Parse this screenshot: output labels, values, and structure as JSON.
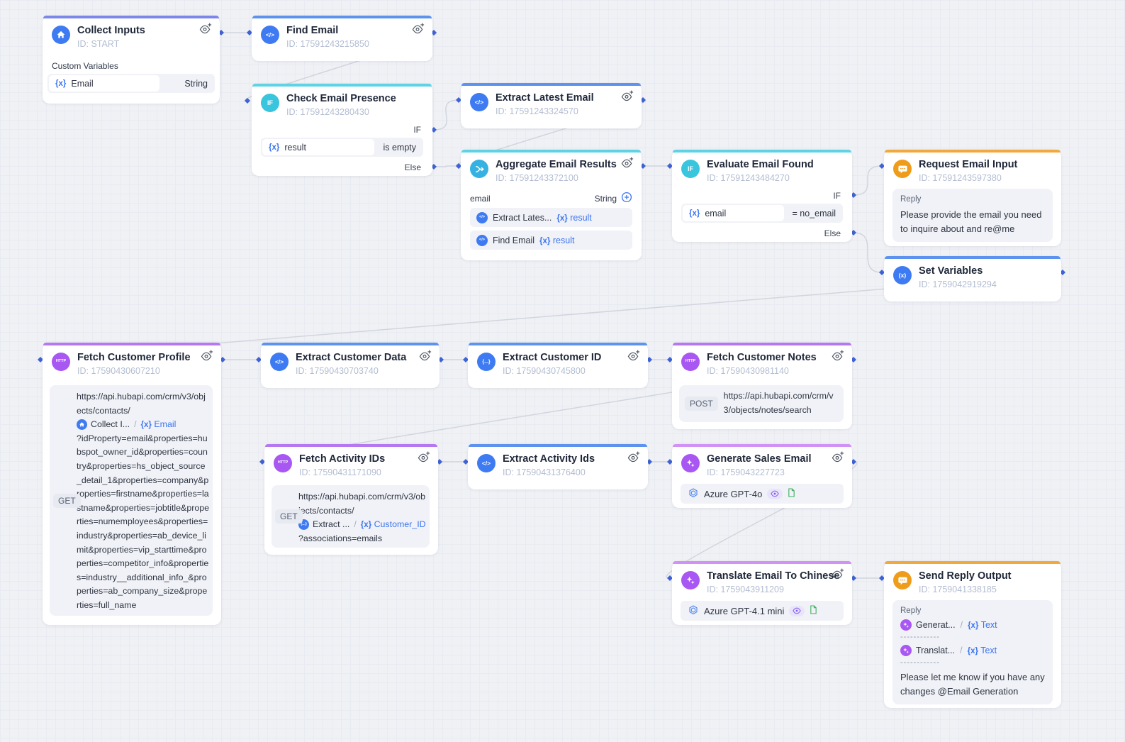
{
  "palette": {
    "canvas_bg": "#eff1f5",
    "node_bg": "#ffffff",
    "accent_start": "#7d87ea",
    "accent_code": "#5d93ee",
    "accent_logic": "#5ed3e6",
    "accent_http": "#b678f0",
    "accent_ai": "#d292f5",
    "accent_reply": "#f2a93c",
    "port": "#3f63d6",
    "wire": "#d2d5de",
    "reference_blue": "#3b74f0"
  },
  "tokens": {
    "vx": "{x}",
    "sep": "/",
    "dashes": "------------",
    "if_badge": "IF",
    "code_badge": "</>",
    "http_badge": "HTTP",
    "setvar_badge": "(x)",
    "obj_badge": "{...}"
  },
  "nodes": {
    "collect_inputs": {
      "title": "Collect Inputs",
      "id": "ID: START",
      "section": "Custom Variables",
      "var_name": "Email",
      "var_type": "String"
    },
    "find_email": {
      "title": "Find Email",
      "id": "ID: 17591243215850"
    },
    "check_email_presence": {
      "title": "Check Email Presence",
      "id": "ID: 17591243280430",
      "if_label": "IF",
      "else_label": "Else",
      "cond_var": "result",
      "cond_op": "is empty"
    },
    "extract_latest_email": {
      "title": "Extract Latest Email",
      "id": "ID: 17591243324570"
    },
    "aggregate_email_results": {
      "title": "Aggregate Email Results",
      "id": "ID: 17591243372100",
      "field_name": "email",
      "field_type": "String",
      "rows": [
        {
          "name": "Extract Lates...",
          "var": "result"
        },
        {
          "name": "Find Email",
          "var": "result"
        }
      ]
    },
    "evaluate_email_found": {
      "title": "Evaluate Email Found",
      "id": "ID: 17591243484270",
      "if_label": "IF",
      "else_label": "Else",
      "cond_var": "email",
      "cond_op": "= no_email"
    },
    "request_email_input": {
      "title": "Request Email Input",
      "id": "ID: 17591243597380",
      "reply_label": "Reply",
      "reply_text": "Please provide the email you need to inquire about and re@me"
    },
    "set_variables": {
      "title": "Set Variables",
      "id": "ID: 1759042919294"
    },
    "fetch_customer_profile": {
      "title": "Fetch Customer Profile",
      "id": "ID: 17590430607210",
      "method": "GET",
      "url_1": "https://api.hubapi.com/crm/v3/objects/contacts/",
      "ref_name": "Collect I...",
      "ref_var": "Email",
      "url_2": "?idProperty=email&properties=hubspot_owner_id&properties=country&properties=hs_object_source_detail_1&properties=company&properties=firstname&properties=lastname&properties=jobtitle&properties=numemployees&properties=industry&properties=ab_device_limit&properties=vip_starttime&properties=competitor_info&properties=industry__additional_info_&properties=ab_company_size&properties=full_name"
    },
    "extract_customer_data": {
      "title": "Extract Customer Data",
      "id": "ID: 17590430703740"
    },
    "extract_customer_id": {
      "title": "Extract Customer ID",
      "id": "ID: 17590430745800"
    },
    "fetch_customer_notes": {
      "title": "Fetch Customer Notes",
      "id": "ID: 17590430981140",
      "method": "POST",
      "url": "https://api.hubapi.com/crm/v3/objects/notes/search"
    },
    "fetch_activity_ids": {
      "title": "Fetch Activity IDs",
      "id": "ID: 17590431171090",
      "method": "GET",
      "url_1": "https://api.hubapi.com/crm/v3/objects/contacts/",
      "ref_name": "Extract ...",
      "ref_var": "Customer_ID",
      "url_2": "?associations=emails"
    },
    "extract_activity_ids": {
      "title": "Extract Activity Ids",
      "id": "ID: 17590431376400"
    },
    "generate_sales_email": {
      "title": "Generate Sales Email",
      "id": "ID: 1759043227723",
      "model": "Azure GPT-4o"
    },
    "translate_email_to_chinese": {
      "title": "Translate Email To Chinese",
      "id": "ID: 1759043911209",
      "model": "Azure GPT-4.1 mini"
    },
    "send_reply_output": {
      "title": "Send Reply Output",
      "id": "ID: 1759041338185",
      "reply_label": "Reply",
      "refs": [
        {
          "name": "Generat...",
          "var": "Text"
        },
        {
          "name": "Translat...",
          "var": "Text"
        }
      ],
      "reply_text": "Please let me know if you have any changes @Email Generation"
    }
  }
}
